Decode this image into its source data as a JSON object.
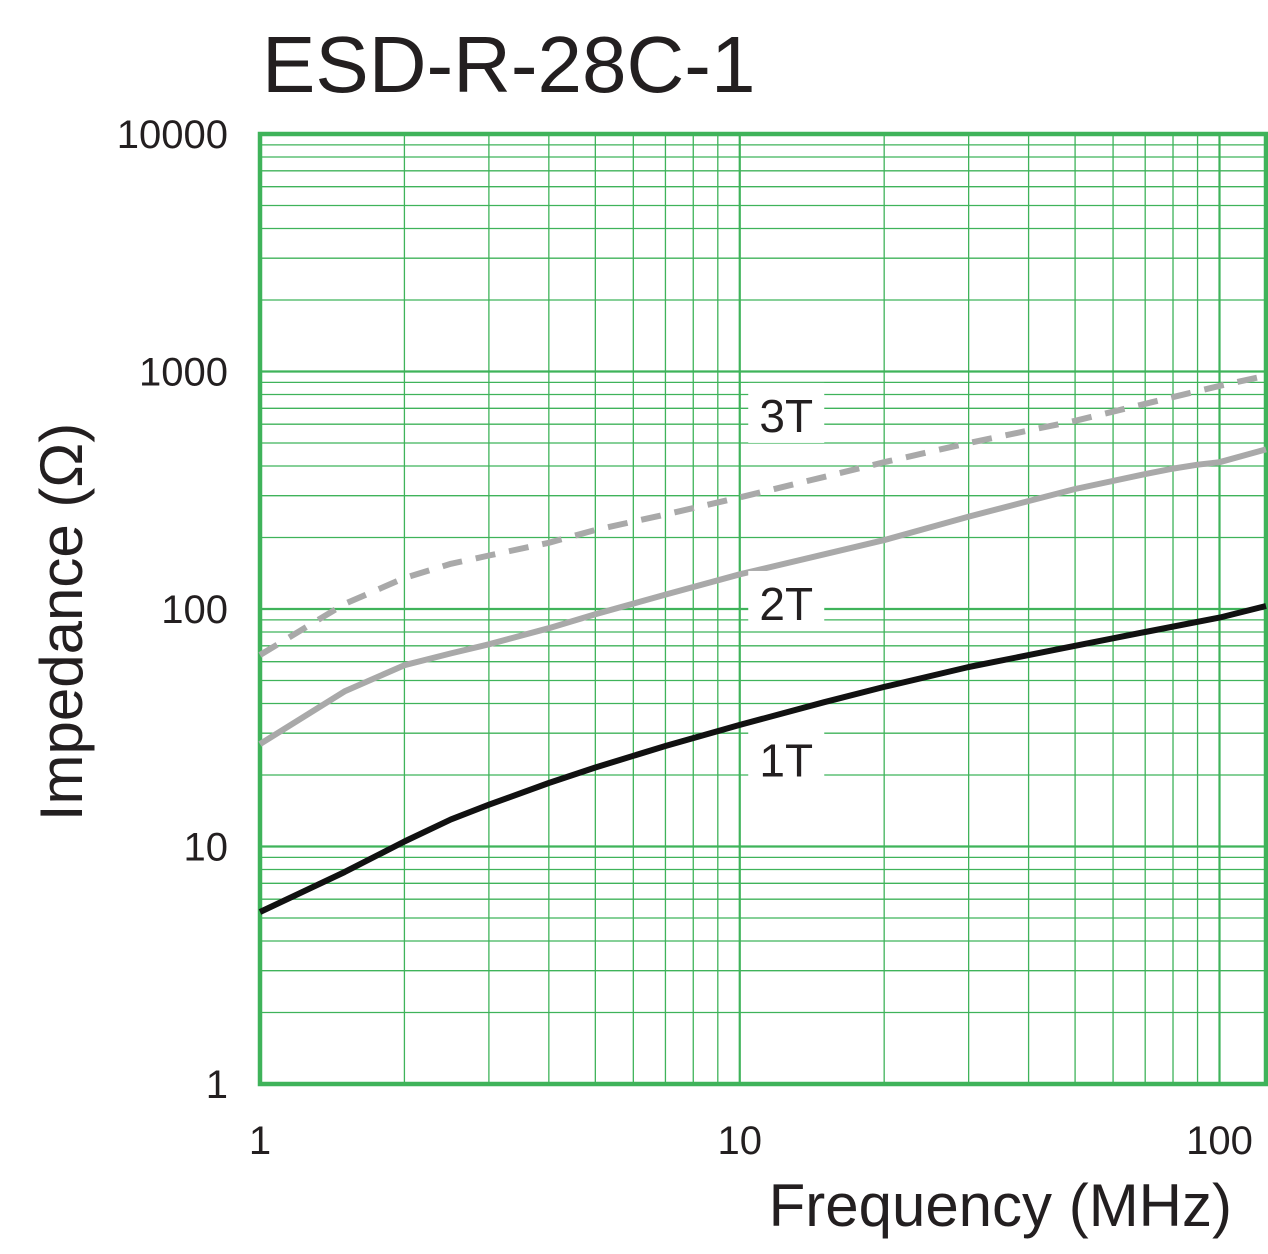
{
  "chart_data": {
    "type": "line",
    "title": "ESD-R-28C-1",
    "xlabel": "Frequency (MHz)",
    "ylabel": "Impedance (Ω)",
    "xscale": "log",
    "yscale": "log",
    "xlim": [
      1,
      125
    ],
    "ylim": [
      1,
      10000
    ],
    "x_ticks": [
      {
        "value": 1,
        "label": "1"
      },
      {
        "value": 10,
        "label": "10"
      },
      {
        "value": 100,
        "label": "100"
      }
    ],
    "y_ticks": [
      {
        "value": 1,
        "label": "1"
      },
      {
        "value": 10,
        "label": "10"
      },
      {
        "value": 100,
        "label": "100"
      },
      {
        "value": 1000,
        "label": "1000"
      },
      {
        "value": 10000,
        "label": "10000"
      }
    ],
    "grid": true,
    "colors": {
      "grid": "#3fb35a",
      "series_1t": "#111111",
      "series_2t": "#a9a9a9",
      "series_3t": "#a9a9a9",
      "text": "#231f20"
    },
    "series": [
      {
        "name": "1T",
        "style": "solid",
        "x": [
          1,
          1.5,
          2,
          2.5,
          3,
          4,
          5,
          7,
          10,
          15,
          20,
          30,
          50,
          70,
          100,
          125
        ],
        "y": [
          5.3,
          7.8,
          10.5,
          13,
          15,
          18.5,
          21.5,
          26.5,
          32.5,
          40.5,
          47,
          57,
          70,
          80,
          92,
          103
        ]
      },
      {
        "name": "2T",
        "style": "solid",
        "x": [
          1,
          1.5,
          2,
          2.5,
          3,
          4,
          5,
          7,
          10,
          15,
          20,
          30,
          50,
          70,
          80,
          90,
          100,
          125
        ],
        "y": [
          27,
          45,
          58,
          65,
          71,
          83,
          95,
          115,
          140,
          170,
          195,
          245,
          320,
          370,
          390,
          405,
          415,
          470
        ]
      },
      {
        "name": "3T",
        "style": "dashed",
        "x": [
          1,
          1.5,
          2,
          2.5,
          3,
          4,
          5,
          7,
          10,
          15,
          20,
          30,
          50,
          80,
          100,
          125
        ],
        "y": [
          64,
          105,
          135,
          155,
          168,
          190,
          215,
          250,
          295,
          360,
          415,
          500,
          620,
          780,
          870,
          960
        ]
      }
    ],
    "annotations": [
      {
        "text": "3T",
        "series": "3T",
        "x": 12.5,
        "y": 650
      },
      {
        "text": "2T",
        "series": "2T",
        "x": 12.5,
        "y": 105
      },
      {
        "text": "1T",
        "series": "1T",
        "x": 12.5,
        "y": 23
      }
    ]
  }
}
